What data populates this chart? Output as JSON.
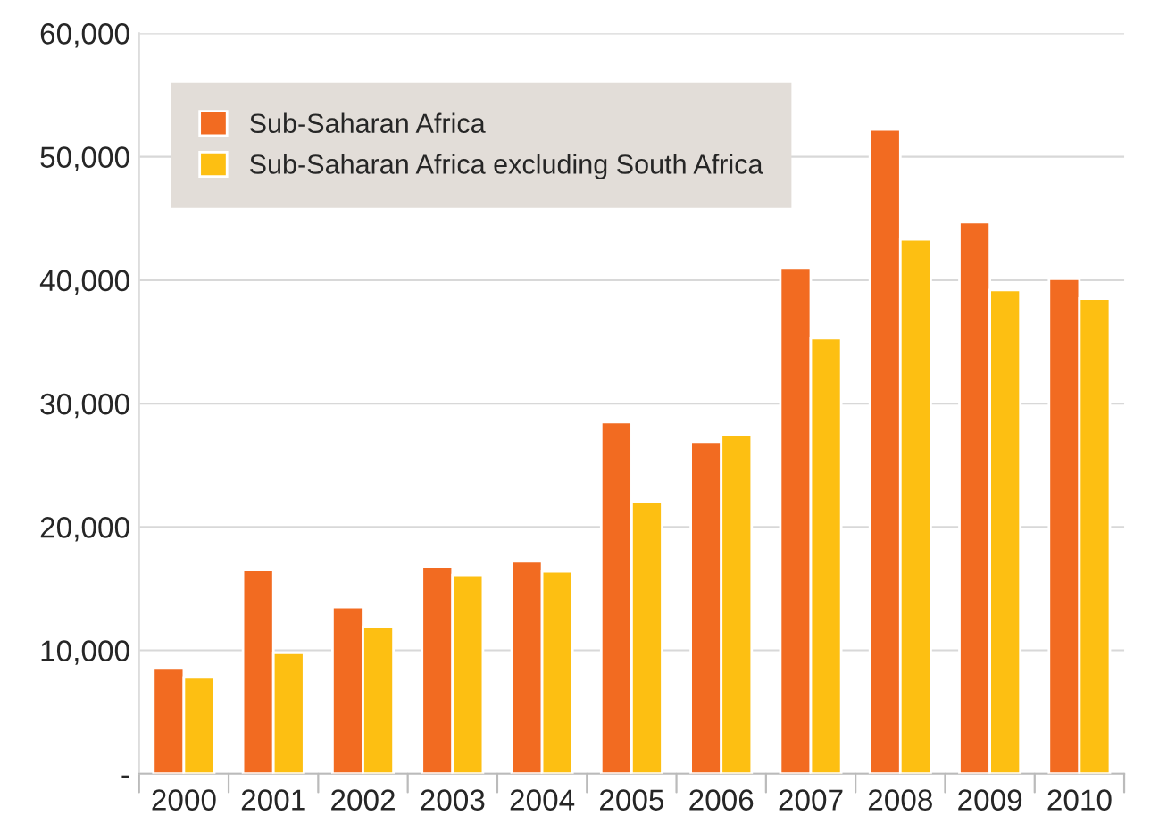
{
  "chart_data": {
    "type": "bar",
    "categories": [
      "2000",
      "2001",
      "2002",
      "2003",
      "2004",
      "2005",
      "2006",
      "2007",
      "2008",
      "2009",
      "2010"
    ],
    "series": [
      {
        "name": "Sub-Saharan Africa",
        "color": "#f26b21",
        "values": [
          8600,
          16500,
          13500,
          16800,
          17200,
          28500,
          26900,
          41000,
          52200,
          44700,
          40100
        ]
      },
      {
        "name": "Sub-Saharan Africa excluding South Africa",
        "color": "#fdbf12",
        "values": [
          7800,
          9800,
          11900,
          16100,
          16400,
          22000,
          27500,
          35300,
          43300,
          39200,
          38500
        ]
      }
    ],
    "ylim": [
      0,
      60000
    ],
    "yticks": [
      {
        "value": 0,
        "label": "-"
      },
      {
        "value": 10000,
        "label": "10,000"
      },
      {
        "value": 20000,
        "label": "20,000"
      },
      {
        "value": 30000,
        "label": "30,000"
      },
      {
        "value": 40000,
        "label": "40,000"
      },
      {
        "value": 50000,
        "label": "50,000"
      },
      {
        "value": 60000,
        "label": "60,000"
      }
    ],
    "grid": "y",
    "legend": "top left"
  }
}
